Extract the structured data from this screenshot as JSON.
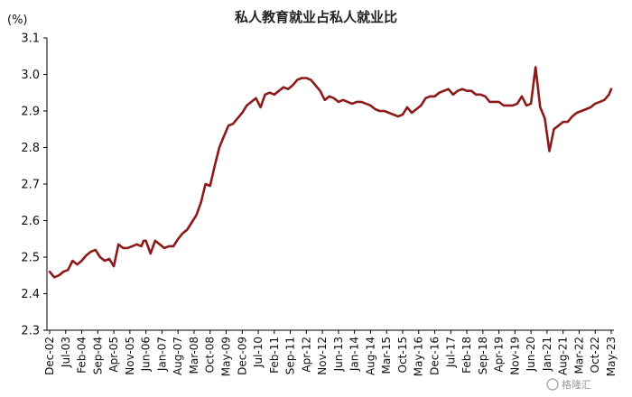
{
  "watermark": "格隆汇",
  "chart_data": {
    "type": "line",
    "title": "私人教育就业占私人就业比",
    "ylabel": "(%)",
    "xlabel": "",
    "ylim": [
      2.3,
      3.1
    ],
    "yticks": [
      "2.3",
      "2.4",
      "2.5",
      "2.6",
      "2.7",
      "2.8",
      "2.9",
      "3.0",
      "3.1"
    ],
    "grid": false,
    "line_color": "#8b1a1a",
    "x_tick_labels": [
      "Dec-02",
      "Jul-03",
      "Feb-04",
      "Sep-04",
      "Apr-05",
      "Nov-05",
      "Jun-06",
      "Jan-07",
      "Aug-07",
      "Mar-08",
      "Oct-08",
      "May-09",
      "Dec-09",
      "Jul-10",
      "Feb-11",
      "Sep-11",
      "Apr-12",
      "Nov-12",
      "Jun-13",
      "Jan-14",
      "Aug-14",
      "Mar-15",
      "Oct-15",
      "May-16",
      "Dec-16",
      "Jul-17",
      "Feb-18",
      "Sep-18",
      "Apr-19",
      "Nov-19",
      "Jun-20",
      "Jan-21",
      "Aug-21",
      "Mar-22",
      "Oct-22",
      "May-23"
    ],
    "series": [
      {
        "x": [
          "2002-12",
          "2003-02",
          "2003-04",
          "2003-06",
          "2003-08",
          "2003-10",
          "2003-12",
          "2004-02",
          "2004-04",
          "2004-06",
          "2004-08",
          "2004-09",
          "2004-10",
          "2004-12",
          "2005-02",
          "2005-04",
          "2005-06",
          "2005-08",
          "2005-10",
          "2005-12",
          "2006-02",
          "2006-04",
          "2006-05",
          "2006-06",
          "2006-08",
          "2006-10",
          "2006-12",
          "2007-02",
          "2007-04",
          "2007-06",
          "2007-08",
          "2007-10",
          "2007-12",
          "2008-02",
          "2008-04",
          "2008-06",
          "2008-08",
          "2008-10",
          "2008-12",
          "2009-02",
          "2009-04",
          "2009-06",
          "2009-08",
          "2009-10",
          "2009-12",
          "2010-02",
          "2010-04",
          "2010-06",
          "2010-08",
          "2010-10",
          "2010-12",
          "2011-02",
          "2011-04",
          "2011-06",
          "2011-08",
          "2011-10",
          "2011-12",
          "2012-02",
          "2012-04",
          "2012-06",
          "2012-08",
          "2012-10",
          "2012-12",
          "2013-02",
          "2013-04",
          "2013-06",
          "2013-08",
          "2013-10",
          "2013-12",
          "2014-02",
          "2014-04",
          "2014-06",
          "2014-08",
          "2014-10",
          "2014-12",
          "2015-02",
          "2015-04",
          "2015-06",
          "2015-08",
          "2015-10",
          "2015-12",
          "2016-02",
          "2016-04",
          "2016-06",
          "2016-08",
          "2016-10",
          "2016-12",
          "2017-02",
          "2017-04",
          "2017-06",
          "2017-08",
          "2017-10",
          "2017-12",
          "2018-02",
          "2018-04",
          "2018-06",
          "2018-08",
          "2018-10",
          "2018-12",
          "2019-02",
          "2019-04",
          "2019-06",
          "2019-08",
          "2019-10",
          "2019-12",
          "2020-02",
          "2020-04",
          "2020-06",
          "2020-08",
          "2020-10",
          "2020-12",
          "2021-02",
          "2021-04",
          "2021-06",
          "2021-08",
          "2021-10",
          "2021-12",
          "2022-02",
          "2022-04",
          "2022-06",
          "2022-08",
          "2022-10",
          "2022-12",
          "2023-02",
          "2023-04",
          "2023-05"
        ],
        "y": [
          2.46,
          2.445,
          2.45,
          2.46,
          2.465,
          2.49,
          2.48,
          2.49,
          2.505,
          2.515,
          2.52,
          2.51,
          2.5,
          2.49,
          2.495,
          2.475,
          2.535,
          2.525,
          2.525,
          2.53,
          2.535,
          2.53,
          2.545,
          2.545,
          2.51,
          2.545,
          2.535,
          2.525,
          2.53,
          2.53,
          2.55,
          2.565,
          2.575,
          2.595,
          2.615,
          2.65,
          2.7,
          2.695,
          2.75,
          2.8,
          2.83,
          2.86,
          2.865,
          2.88,
          2.895,
          2.915,
          2.925,
          2.935,
          2.91,
          2.945,
          2.95,
          2.945,
          2.955,
          2.965,
          2.96,
          2.97,
          2.985,
          2.99,
          2.99,
          2.985,
          2.97,
          2.955,
          2.93,
          2.94,
          2.935,
          2.925,
          2.93,
          2.925,
          2.92,
          2.925,
          2.925,
          2.92,
          2.915,
          2.905,
          2.9,
          2.9,
          2.895,
          2.89,
          2.885,
          2.89,
          2.91,
          2.895,
          2.905,
          2.915,
          2.935,
          2.94,
          2.94,
          2.95,
          2.955,
          2.96,
          2.945,
          2.955,
          2.96,
          2.955,
          2.955,
          2.945,
          2.945,
          2.94,
          2.925,
          2.925,
          2.925,
          2.915,
          2.915,
          2.915,
          2.92,
          2.94,
          2.915,
          2.92,
          3.02,
          2.91,
          2.88,
          2.79,
          2.85,
          2.86,
          2.87,
          2.87,
          2.885,
          2.895,
          2.9,
          2.905,
          2.91,
          2.92,
          2.925,
          2.93,
          2.945,
          2.96
        ]
      }
    ]
  }
}
